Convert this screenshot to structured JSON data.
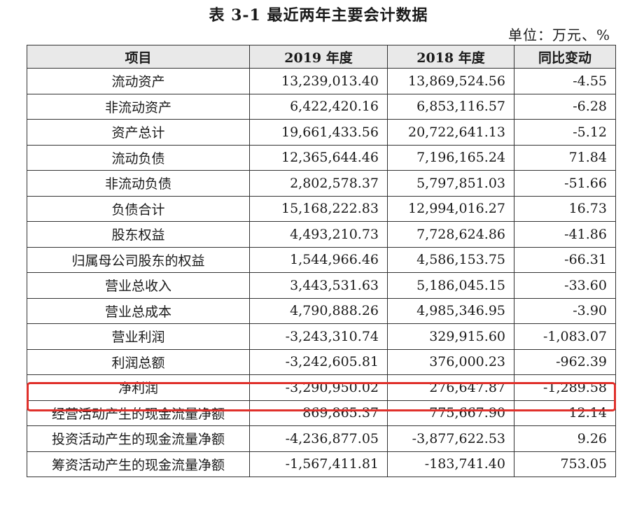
{
  "title": "表 3-1  最近两年主要会计数据",
  "unit": "单位：万元、%",
  "headers": [
    "项目",
    "2019 年度",
    "2018 年度",
    "同比变动"
  ],
  "rows": [
    {
      "item": "流动资产",
      "y2019": "13,239,013.40",
      "y2018": "13,869,524.56",
      "change": "-4.55"
    },
    {
      "item": "非流动资产",
      "y2019": "6,422,420.16",
      "y2018": "6,853,116.57",
      "change": "-6.28"
    },
    {
      "item": "资产总计",
      "y2019": "19,661,433.56",
      "y2018": "20,722,641.13",
      "change": "-5.12"
    },
    {
      "item": "流动负债",
      "y2019": "12,365,644.46",
      "y2018": "7,196,165.24",
      "change": "71.84"
    },
    {
      "item": "非流动负债",
      "y2019": "2,802,578.37",
      "y2018": "5,797,851.03",
      "change": "-51.66"
    },
    {
      "item": "负债合计",
      "y2019": "15,168,222.83",
      "y2018": "12,994,016.27",
      "change": "16.73"
    },
    {
      "item": "股东权益",
      "y2019": "4,493,210.73",
      "y2018": "7,728,624.86",
      "change": "-41.86"
    },
    {
      "item": "归属母公司股东的权益",
      "y2019": "1,544,966.46",
      "y2018": "4,586,153.75",
      "change": "-66.31"
    },
    {
      "item": "营业总收入",
      "y2019": "3,443,531.63",
      "y2018": "5,186,045.15",
      "change": "-33.60"
    },
    {
      "item": "营业总成本",
      "y2019": "4,790,888.26",
      "y2018": "4,985,346.95",
      "change": "-3.90"
    },
    {
      "item": "营业利润",
      "y2019": "-3,243,310.74",
      "y2018": "329,915.60",
      "change": "-1,083.07"
    },
    {
      "item": "利润总额",
      "y2019": "-3,242,605.81",
      "y2018": "376,000.23",
      "change": "-962.39"
    },
    {
      "item": "净利润",
      "y2019": "-3,290,950.02",
      "y2018": "276,647.87",
      "change": "-1,289.58",
      "highlighted": true
    },
    {
      "item": "经营活动产生的现金流量净额",
      "y2019": "869,865.37",
      "y2018": "775,667.90",
      "change": "12.14"
    },
    {
      "item": "投资活动产生的现金流量净额",
      "y2019": "-4,236,877.05",
      "y2018": "-3,877,622.53",
      "change": "9.26"
    },
    {
      "item": "筹资活动产生的现金流量净额",
      "y2019": "-1,567,411.81",
      "y2018": "-183,741.40",
      "change": "753.05"
    }
  ],
  "highlight_color": "#e0302b"
}
